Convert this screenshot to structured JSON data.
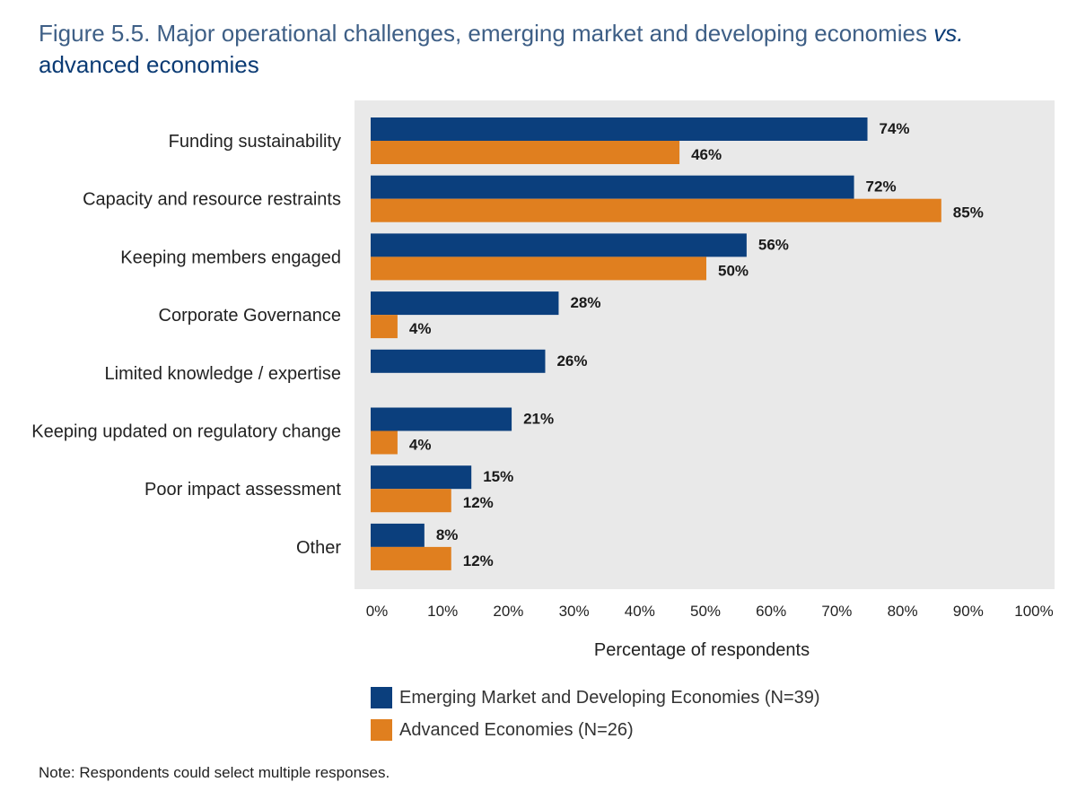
{
  "title": {
    "main": "Figure 5.5. Major operational challenges, emerging market and developing economies ",
    "vs": "vs.",
    "tail": " advanced economies"
  },
  "colors": {
    "emde": "#0b3f7d",
    "advanced": "#e07f1f",
    "plot_bg": "#e9e9e9"
  },
  "chart_data": {
    "type": "bar",
    "orientation": "horizontal",
    "categories": [
      "Funding sustainability",
      "Capacity and resource restraints",
      "Keeping members engaged",
      "Corporate Governance",
      "Limited knowledge / expertise",
      "Keeping updated on regulatory change",
      "Poor impact assessment",
      "Other"
    ],
    "series": [
      {
        "name": "Emerging Market and Developing Economies (N=39)",
        "values": [
          74,
          72,
          56,
          28,
          26,
          21,
          15,
          8
        ],
        "labels": [
          "74%",
          "72%",
          "56%",
          "28%",
          "26%",
          "21%",
          "15%",
          "8%"
        ]
      },
      {
        "name": "Advanced Economies (N=26)",
        "values": [
          46,
          85,
          50,
          4,
          null,
          4,
          12,
          12
        ],
        "labels": [
          "46%",
          "85%",
          "50%",
          "4%",
          null,
          "4%",
          "12%",
          "12%"
        ]
      }
    ],
    "xlabel": "Percentage of respondents",
    "xlim": [
      0,
      100
    ],
    "xticks": [
      "0%",
      "10%",
      "20%",
      "30%",
      "40%",
      "50%",
      "60%",
      "70%",
      "80%",
      "90%",
      "100%"
    ],
    "legend_position": "bottom"
  },
  "note": "Note: Respondents could select multiple responses."
}
